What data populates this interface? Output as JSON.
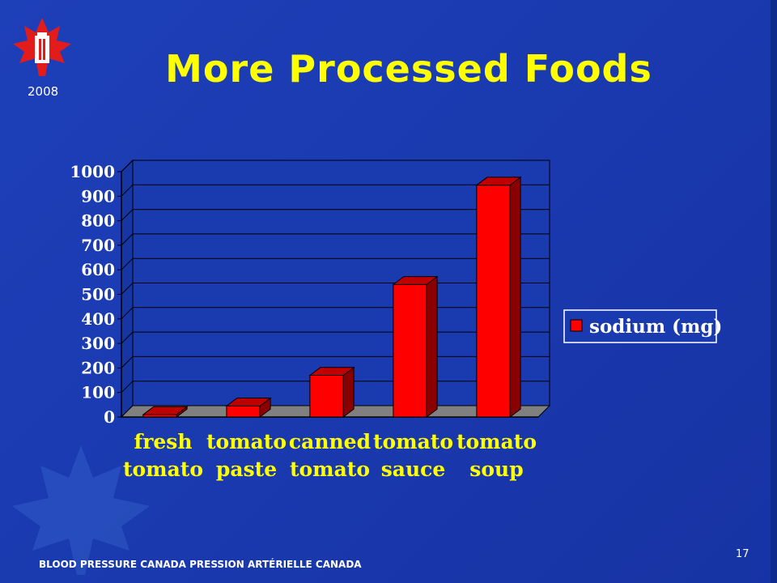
{
  "slide": {
    "title": "More Processed Foods",
    "year": "2008",
    "footer": "BLOOD PRESSURE CANADA  PRESSION ARTÉRIELLE CANADA",
    "page_number": "17"
  },
  "colors": {
    "background": "#1a3ab0",
    "title": "#ffff00",
    "bar": "#ff0000",
    "plot_area": "#1a3ab0",
    "axis_text": "#ffffff",
    "category_text": "#ffff00"
  },
  "chart_data": {
    "type": "bar",
    "categories": [
      [
        "fresh",
        "tomato"
      ],
      [
        "tomato",
        "paste"
      ],
      [
        "canned",
        "tomato"
      ],
      [
        "tomato",
        "sauce"
      ],
      [
        "tomato",
        "soup"
      ]
    ],
    "series": [
      {
        "name": "sodium (mg)",
        "values": [
          10,
          45,
          170,
          540,
          945
        ]
      }
    ],
    "ylim": [
      0,
      1000
    ],
    "yticks": [
      "0",
      "100",
      "200",
      "300",
      "400",
      "500",
      "600",
      "700",
      "800",
      "900",
      "1000"
    ],
    "grid": true,
    "legend_position": "right",
    "bar_style": "3d"
  }
}
